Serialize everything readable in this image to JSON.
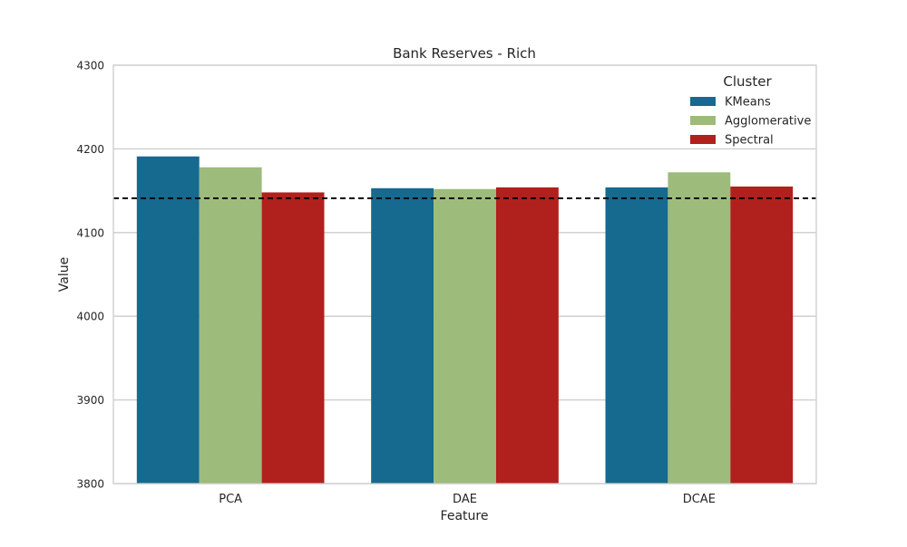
{
  "chart_data": {
    "type": "bar",
    "title": "Bank Reserves - Rich",
    "xlabel": "Feature",
    "ylabel": "Value",
    "categories": [
      "PCA",
      "DAE",
      "DCAE"
    ],
    "series": [
      {
        "name": "KMeans",
        "values": [
          4191,
          4153,
          4154
        ],
        "color": "#16698f"
      },
      {
        "name": "Agglomerative",
        "values": [
          4178,
          4152,
          4172
        ],
        "color": "#9dbb7b"
      },
      {
        "name": "Spectral",
        "values": [
          4148,
          4154,
          4155
        ],
        "color": "#b0201d"
      }
    ],
    "ylim": [
      3800,
      4300
    ],
    "yticks": [
      3800,
      3900,
      4000,
      4100,
      4200,
      4300
    ],
    "reference_line": {
      "value": 4141,
      "style": "dashed",
      "color": "#000000"
    },
    "legend": {
      "title": "Cluster",
      "placement": "top-right"
    },
    "grid": {
      "y": true,
      "x": false,
      "color": "#cccccc"
    }
  }
}
